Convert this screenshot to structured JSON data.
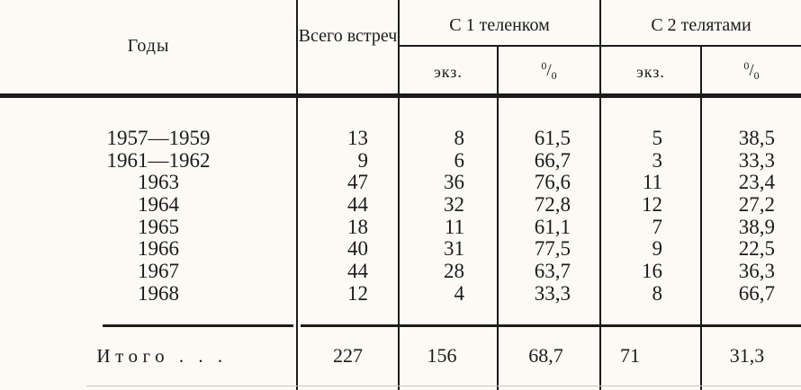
{
  "table": {
    "columns": {
      "years": "Годы",
      "total": "Всего встреч",
      "group1": "С 1 теленком",
      "group2": "С 2 телятами",
      "count_unit": "экз.",
      "pct": {
        "sup": "0",
        "slash": "/",
        "sub": "0"
      }
    },
    "rows": [
      {
        "year": "1957—1959",
        "total": "13",
        "calf1_count": "8",
        "calf1_pct": "61,5",
        "calf2_count": "5",
        "calf2_pct": "38,5"
      },
      {
        "year": "1961—1962",
        "total": "9",
        "calf1_count": "6",
        "calf1_pct": "66,7",
        "calf2_count": "3",
        "calf2_pct": "33,3"
      },
      {
        "year": "1963",
        "total": "47",
        "calf1_count": "36",
        "calf1_pct": "76,6",
        "calf2_count": "11",
        "calf2_pct": "23,4"
      },
      {
        "year": "1964",
        "total": "44",
        "calf1_count": "32",
        "calf1_pct": "72,8",
        "calf2_count": "12",
        "calf2_pct": "27,2"
      },
      {
        "year": "1965",
        "total": "18",
        "calf1_count": "11",
        "calf1_pct": "61,1",
        "calf2_count": "7",
        "calf2_pct": "38,9"
      },
      {
        "year": "1966",
        "total": "40",
        "calf1_count": "31",
        "calf1_pct": "77,5",
        "calf2_count": "9",
        "calf2_pct": "22,5"
      },
      {
        "year": "1967",
        "total": "44",
        "calf1_count": "28",
        "calf1_pct": "63,7",
        "calf2_count": "16",
        "calf2_pct": "36,3"
      },
      {
        "year": "1968",
        "total": "12",
        "calf1_count": "4",
        "calf1_pct": "33,3",
        "calf2_count": "8",
        "calf2_pct": "66,7"
      }
    ],
    "total_row": {
      "label": "Итого . . .",
      "total": "227",
      "calf1_count": "156",
      "calf1_pct": "68,7",
      "calf2_count": "71",
      "calf2_pct": "31,3"
    }
  },
  "colors": {
    "paper": "#fbfaf4",
    "ink": "#1c1b19"
  }
}
